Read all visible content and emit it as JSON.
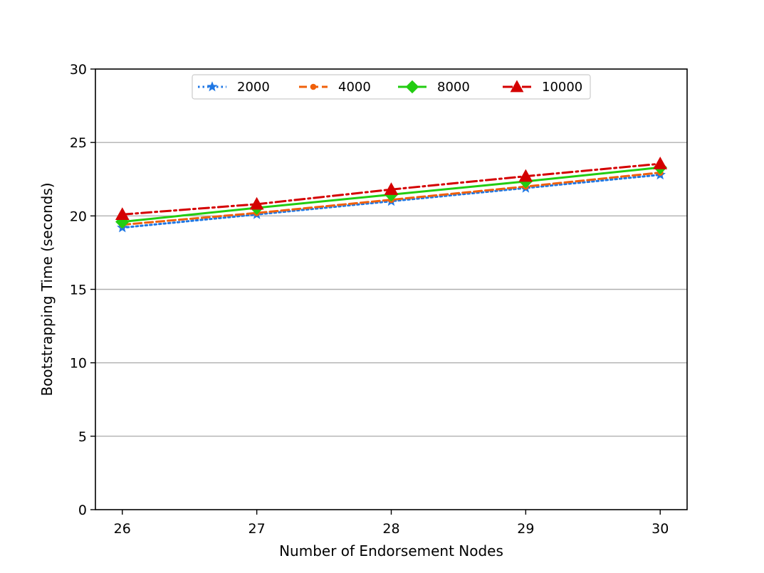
{
  "chart_data": {
    "type": "line",
    "title": "",
    "xlabel": "Number of Endorsement Nodes",
    "ylabel": "Bootstrapping Time (seconds)",
    "x": [
      26,
      27,
      28,
      29,
      30
    ],
    "x_ticks": [
      "26",
      "27",
      "28",
      "29",
      "30"
    ],
    "y_ticks": [
      "0",
      "5",
      "10",
      "15",
      "20",
      "25",
      "30"
    ],
    "ylim": [
      0,
      30
    ],
    "grid": "horizontal",
    "legend_placement": "top-center",
    "series": [
      {
        "name": "2000",
        "values": [
          19.2,
          20.1,
          21.0,
          21.9,
          22.8
        ],
        "color": "#1f77e4",
        "marker": "star",
        "line": "dotted"
      },
      {
        "name": "4000",
        "values": [
          19.4,
          20.2,
          21.1,
          22.0,
          22.95
        ],
        "color": "#f0600a",
        "marker": "circle",
        "line": "dashed"
      },
      {
        "name": "8000",
        "values": [
          19.6,
          20.55,
          21.45,
          22.35,
          23.3
        ],
        "color": "#22cc11",
        "marker": "diamond",
        "line": "solid"
      },
      {
        "name": "10000",
        "values": [
          20.1,
          20.8,
          21.8,
          22.7,
          23.55
        ],
        "color": "#d40000",
        "marker": "triangle",
        "line": "dashdot"
      }
    ]
  }
}
